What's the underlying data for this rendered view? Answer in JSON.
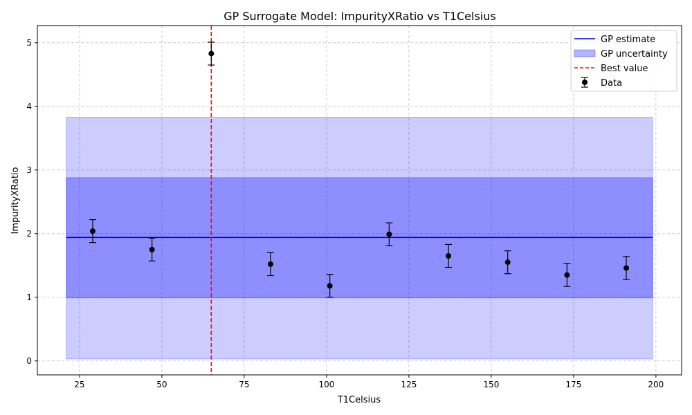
{
  "chart_data": {
    "type": "scatter",
    "title": "GP Surrogate Model: ImpurityXRatio vs T1Celsius",
    "xlabel": "T1Celsius",
    "ylabel": "ImpurityXRatio",
    "xlim": [
      12.2,
      207.8
    ],
    "ylim": [
      -0.22,
      5.27
    ],
    "xticks": [
      25,
      50,
      75,
      100,
      125,
      150,
      175,
      200
    ],
    "yticks": [
      0,
      1,
      2,
      3,
      4,
      5
    ],
    "grid": true,
    "legend_position": "top-right",
    "data": {
      "name": "Data",
      "x": [
        29,
        47,
        65,
        83,
        101,
        119,
        137,
        155,
        173,
        191
      ],
      "y": [
        2.04,
        1.75,
        4.83,
        1.52,
        1.18,
        1.99,
        1.65,
        1.55,
        1.35,
        1.46
      ],
      "err": [
        0.18,
        0.18,
        0.18,
        0.18,
        0.18,
        0.18,
        0.18,
        0.18,
        0.18,
        0.18
      ],
      "color": "#000000"
    },
    "gp_estimate": {
      "name": "GP estimate",
      "x": [
        21,
        199
      ],
      "y": [
        1.94,
        1.94
      ],
      "color": "#0000cc"
    },
    "gp_uncertainty": {
      "name": "GP uncertainty",
      "x": [
        21,
        199
      ],
      "inner": [
        0.99,
        2.88
      ],
      "outer": [
        0.03,
        3.83
      ],
      "color": "#0000ff"
    },
    "best_value": {
      "name": "Best value",
      "x": 65,
      "color": "#ff0000"
    }
  }
}
